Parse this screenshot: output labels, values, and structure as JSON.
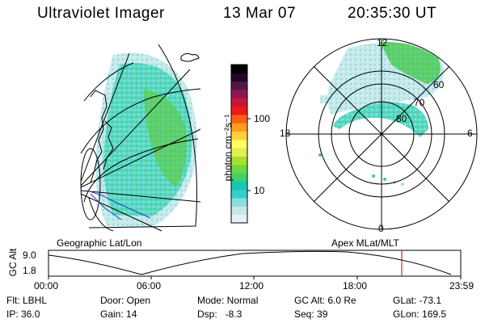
{
  "header": {
    "title": "Ultraviolet Imager",
    "date": "13 Mar 07",
    "time": "20:35:30 UT"
  },
  "left_panel": {
    "caption": "Geographic Lat/Lon"
  },
  "right_panel": {
    "caption": "Apex MLat/MLT",
    "lat_labels": [
      "60",
      "70",
      "80"
    ],
    "mlt_labels": {
      "top": "12",
      "left": "18",
      "right": "6",
      "bottom": "0"
    }
  },
  "colorbar": {
    "unit_label": "photon cm⁻²s⁻¹",
    "ticks": [
      "100",
      "10"
    ],
    "colors": [
      "#e8f2f4",
      "#c8e6ea",
      "#8fdcdc",
      "#30d0d0",
      "#18c8b0",
      "#40d070",
      "#70d840",
      "#a8e030",
      "#e0f050",
      "#ffff60",
      "#ffd040",
      "#ff9c20",
      "#ff6010",
      "#f01818",
      "#c81838",
      "#901850",
      "#501848",
      "#200828",
      "#000000"
    ]
  },
  "timeline": {
    "y_axis_label": "GC Alt",
    "y_ticks": [
      "9.0",
      "1.8"
    ],
    "x_ticks": [
      "00:00",
      "06:00",
      "12:00",
      "18:00",
      "23:59"
    ],
    "marker_color": "#c00000"
  },
  "status": {
    "flt": "Flt: LBHL",
    "door": "Door: Open",
    "mode": "Mode: Normal",
    "gc_alt": "GC Alt: 6.0 Re",
    "glat": "GLat: -73.1",
    "ip": "IP: 36.0",
    "gain": "Gain: 14",
    "dsp": "Dsp:   -8.3",
    "seq": "Seq: 39",
    "glon": "GLon: 169.5"
  }
}
